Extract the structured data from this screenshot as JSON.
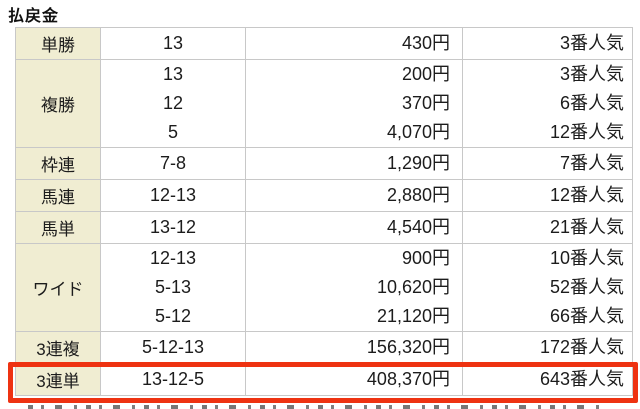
{
  "page": {
    "title": "払戻金"
  },
  "table": {
    "columns": [
      "bet_type",
      "combination",
      "payout",
      "popularity"
    ],
    "rows": [
      {
        "bet_type": "単勝",
        "highlighted": false,
        "entries": [
          {
            "combination": "13",
            "payout": "430円",
            "popularity": "3番人気"
          }
        ]
      },
      {
        "bet_type": "複勝",
        "highlighted": false,
        "entries": [
          {
            "combination": "13",
            "payout": "200円",
            "popularity": "3番人気"
          },
          {
            "combination": "12",
            "payout": "370円",
            "popularity": "6番人気"
          },
          {
            "combination": "5",
            "payout": "4,070円",
            "popularity": "12番人気"
          }
        ]
      },
      {
        "bet_type": "枠連",
        "highlighted": false,
        "entries": [
          {
            "combination": "7-8",
            "payout": "1,290円",
            "popularity": "7番人気"
          }
        ]
      },
      {
        "bet_type": "馬連",
        "highlighted": false,
        "entries": [
          {
            "combination": "12-13",
            "payout": "2,880円",
            "popularity": "12番人気"
          }
        ]
      },
      {
        "bet_type": "馬単",
        "highlighted": false,
        "entries": [
          {
            "combination": "13-12",
            "payout": "4,540円",
            "popularity": "21番人気"
          }
        ]
      },
      {
        "bet_type": "ワイド",
        "highlighted": false,
        "entries": [
          {
            "combination": "12-13",
            "payout": "900円",
            "popularity": "10番人気"
          },
          {
            "combination": "5-13",
            "payout": "10,620円",
            "popularity": "52番人気"
          },
          {
            "combination": "5-12",
            "payout": "21,120円",
            "popularity": "66番人気"
          }
        ]
      },
      {
        "bet_type": "3連複",
        "highlighted": false,
        "entries": [
          {
            "combination": "5-12-13",
            "payout": "156,320円",
            "popularity": "172番人気"
          }
        ]
      },
      {
        "bet_type": "3連単",
        "highlighted": true,
        "entries": [
          {
            "combination": "13-12-5",
            "payout": "408,370円",
            "popularity": "643番人気"
          }
        ]
      }
    ]
  },
  "colors": {
    "label_bg": "#f0edd2",
    "highlight_border": "#ee3211",
    "border": "#c8c8c8",
    "text": "#1c1c1c"
  }
}
